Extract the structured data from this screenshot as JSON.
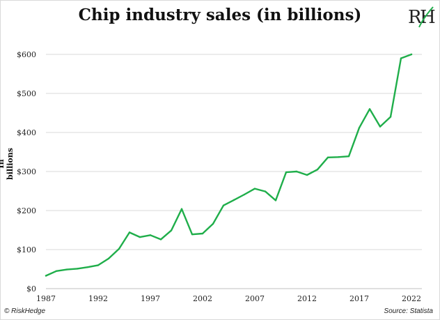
{
  "chart_data": {
    "type": "line",
    "title": "Chip industry sales (in billions)",
    "ylabel": "In billions",
    "xlabel": "",
    "xlim": [
      1987,
      2023
    ],
    "ylim": [
      0,
      650
    ],
    "yticks": [
      0,
      100,
      200,
      300,
      400,
      500,
      600
    ],
    "ytick_labels": [
      "$0",
      "$100",
      "$200",
      "$300",
      "$400",
      "$500",
      "$600"
    ],
    "xticks": [
      1987,
      1992,
      1997,
      2002,
      2007,
      2012,
      2017,
      2022
    ],
    "xtick_labels": [
      "1987",
      "1992",
      "1997",
      "2002",
      "2007",
      "2012",
      "2017",
      "2022"
    ],
    "grid": "horizontal",
    "color": "#1fae4a",
    "series": [
      {
        "x": [
          1987,
          1988,
          1989,
          1990,
          1991,
          1992,
          1993,
          1994,
          1995,
          1996,
          1997,
          1998,
          1999,
          2000,
          2001,
          2002,
          2003,
          2004,
          2005,
          2006,
          2007,
          2008,
          2009,
          2010,
          2011,
          2012,
          2013,
          2014,
          2015,
          2016,
          2017,
          2018,
          2019,
          2020,
          2021,
          2022
        ],
        "values": [
          33,
          45,
          49,
          51,
          55,
          60,
          77,
          102,
          144,
          132,
          137,
          126,
          149,
          204,
          139,
          141,
          166,
          213,
          227,
          241,
          256,
          249,
          226,
          298,
          300,
          291,
          305,
          336,
          337,
          339,
          412,
          460,
          415,
          440,
          590,
          600
        ]
      }
    ]
  },
  "footer": {
    "copyright": "© RiskHedge",
    "source": "Source: Statista"
  },
  "logo_text": "RH"
}
